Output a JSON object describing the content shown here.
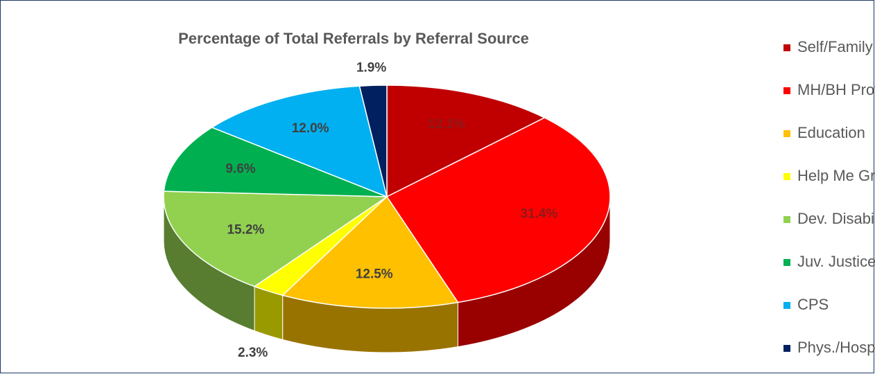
{
  "chart_data": {
    "type": "pie3d",
    "title": "Percentage of Total Referrals by Referral Source",
    "categories": [
      "Self/Family",
      "MH/BH Provider",
      "Education",
      "Help Me Grow",
      "Dev. Disabilities",
      "Juv. Justice",
      "CPS",
      "Phys./Hosp."
    ],
    "values": [
      12.1,
      31.4,
      12.5,
      2.3,
      15.2,
      9.6,
      12.0,
      1.9
    ],
    "value_labels": [
      "12.1%",
      "31.4%",
      "12.5%",
      "2.3%",
      "15.2%",
      "9.6%",
      "12.0%",
      "1.9%"
    ],
    "colors": [
      "#c00000",
      "#ff0000",
      "#ffc000",
      "#ffff00",
      "#92d050",
      "#00b050",
      "#00b0f0",
      "#002060"
    ],
    "legend": "right"
  }
}
